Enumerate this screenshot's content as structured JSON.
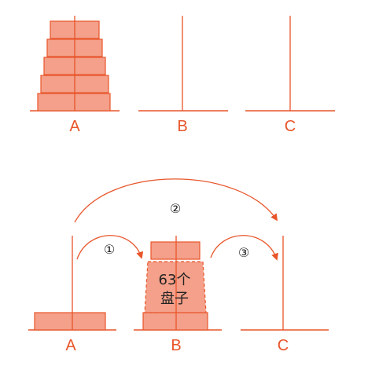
{
  "colors": {
    "accent": "#e8552a",
    "disk_fill": "#f4a08a",
    "text": "#222222"
  },
  "top_diagram": {
    "peg_labels": [
      "A",
      "B",
      "C"
    ],
    "disks_on_A": 5
  },
  "bottom_diagram": {
    "peg_labels": [
      "A",
      "B",
      "C"
    ],
    "steps": [
      "①",
      "②",
      "③"
    ],
    "stack_label_line1": "63个",
    "stack_label_line2": "盘子"
  }
}
